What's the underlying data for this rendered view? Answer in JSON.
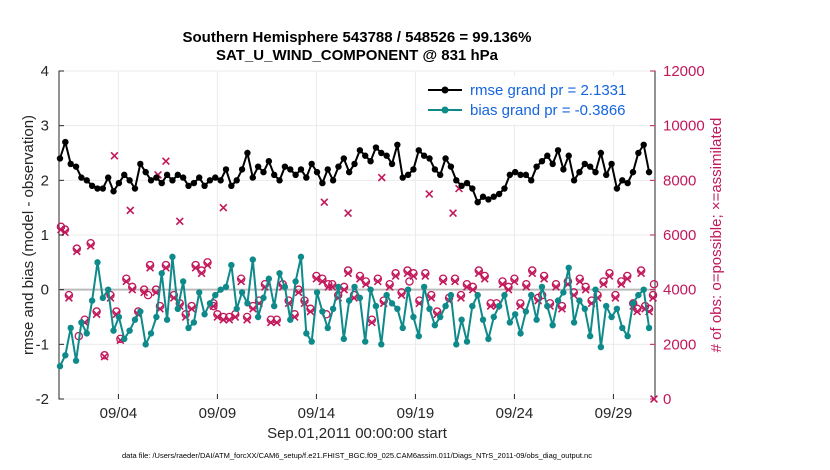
{
  "chart_data": {
    "type": "line",
    "title_line1": "Southern Hemisphere 543788 / 548526 = 99.136%",
    "title_line2": "SAT_U_WIND_COMPONENT @ 831 hPa",
    "xlabel": "Sep.01,2011 00:00:00 start",
    "ylabel": "rmse and bias (model - observation)",
    "ylabel_right": "# of obs: o=possible; ×=assimilated",
    "footnote": "data file: /Users/raeder/DAI/ATM_forcXX/CAM6_setup/f.e21.FHIST_BGC.f09_025.CAM6assim.011/Diags_NTrS_2011-09/obs_diag_output.nc",
    "xlim": [
      1,
      31.1
    ],
    "ylim": [
      -2,
      4
    ],
    "ylim_right": [
      0,
      12000
    ],
    "x_ticks": [
      4,
      9,
      14,
      19,
      24,
      29
    ],
    "x_tick_labels": [
      "09/04",
      "09/09",
      "09/14",
      "09/19",
      "09/24",
      "09/29"
    ],
    "y_ticks": [
      -2,
      -1,
      0,
      1,
      2,
      3,
      4
    ],
    "y_tick_labels": [
      "-2",
      "-1",
      "0",
      "1",
      "2",
      "3",
      "4"
    ],
    "y_right_ticks": [
      0,
      2000,
      4000,
      6000,
      8000,
      10000,
      12000
    ],
    "y_right_tick_labels": [
      "0",
      "2000",
      "4000",
      "6000",
      "8000",
      "10000",
      "12000"
    ],
    "zero_line": 0,
    "legend_position": "top-right",
    "colors": {
      "rmse": "#000000",
      "bias": "#0f8a8a",
      "obs": "#c2185b",
      "legend_text": "#1565e0",
      "zero_line": "#bbbbbb"
    },
    "series": [
      {
        "name": "rmse",
        "legend": "rmse grand pr = 2.1331",
        "values": [
          2.4,
          2.7,
          2.3,
          2.25,
          2.05,
          2.0,
          1.9,
          1.85,
          1.85,
          2.05,
          1.8,
          1.95,
          2.1,
          2.0,
          1.85,
          2.3,
          2.15,
          2.0,
          2.05,
          1.95,
          2.1,
          2.0,
          2.1,
          2.05,
          1.9,
          1.95,
          2.05,
          1.9,
          2.0,
          2.05,
          2.0,
          2.2,
          1.9,
          2.0,
          2.2,
          2.5,
          2.05,
          2.25,
          2.15,
          2.35,
          2.1,
          2.0,
          2.25,
          2.2,
          2.1,
          2.2,
          2.05,
          2.3,
          2.15,
          1.95,
          2.2,
          2.0,
          2.25,
          2.4,
          2.15,
          2.3,
          2.55,
          2.45,
          2.35,
          2.6,
          2.5,
          2.45,
          2.3,
          2.65,
          2.05,
          2.1,
          2.2,
          2.55,
          2.45,
          2.4,
          2.2,
          2.1,
          2.4,
          2.25,
          2.0,
          1.9,
          1.95,
          1.85,
          1.6,
          1.7,
          1.65,
          1.7,
          1.75,
          1.85,
          2.1,
          2.15,
          2.1,
          2.1,
          2.0,
          2.25,
          2.35,
          2.45,
          2.3,
          2.55,
          2.2,
          2.45,
          2.0,
          2.15,
          2.3,
          2.25,
          2.15,
          2.5,
          2.1,
          2.3,
          1.85,
          2.0,
          1.95,
          2.15,
          2.5,
          2.65,
          2.15
        ]
      },
      {
        "name": "bias",
        "legend": "bias grand pr = -0.3866",
        "values": [
          -1.4,
          -1.2,
          -0.7,
          -1.3,
          -0.6,
          -0.8,
          -0.2,
          0.5,
          -0.15,
          0.0,
          -0.75,
          -0.5,
          -0.9,
          -0.75,
          -0.55,
          -0.4,
          -1.0,
          -0.8,
          -0.5,
          0.3,
          -0.55,
          0.6,
          -0.35,
          0.15,
          -0.7,
          -0.6,
          -0.05,
          -0.45,
          -0.25,
          -0.1,
          0.0,
          0.05,
          0.45,
          -0.35,
          -0.05,
          -0.25,
          0.55,
          -0.5,
          -0.15,
          0.2,
          -0.3,
          0.3,
          0.05,
          -0.55,
          0.15,
          0.6,
          -0.8,
          -0.95,
          -0.05,
          -0.4,
          -0.7,
          -0.35,
          0.05,
          -0.9,
          -0.2,
          0.05,
          -0.15,
          -0.95,
          0.0,
          -0.3,
          -1.0,
          -0.1,
          -0.25,
          -0.35,
          -0.7,
          0.0,
          -0.5,
          -0.85,
          0.05,
          -0.35,
          -0.65,
          -0.5,
          -0.3,
          -0.1,
          -1.0,
          -0.55,
          -0.95,
          -0.3,
          -0.1,
          -0.55,
          -0.9,
          -0.5,
          -0.3,
          -0.1,
          -0.6,
          -0.45,
          -0.8,
          -0.4,
          -0.1,
          -0.55,
          0.05,
          -0.3,
          -0.65,
          -0.2,
          -0.05,
          0.4,
          -0.6,
          -0.2,
          -0.35,
          -0.85,
          0.0,
          -1.05,
          -0.3,
          -0.5,
          -0.35,
          -0.7,
          -0.85,
          -0.25,
          -0.1,
          0.0,
          -0.7
        ]
      },
      {
        "name": "obs_possible",
        "values": [
          6300,
          6200,
          3800,
          5500,
          2900,
          5700,
          3200,
          1600,
          3800,
          3200,
          2200,
          4400,
          4100,
          3200,
          4000,
          4900,
          4000,
          3400,
          4900,
          3800,
          3500,
          3100,
          3400,
          4900,
          4700,
          5000,
          3500,
          3100,
          3000,
          3000,
          3100,
          4400,
          3000,
          3400,
          3600,
          4200,
          2900,
          2900,
          4200,
          3600,
          3100,
          4000,
          3600,
          3300,
          4500,
          4400,
          4200,
          4200,
          3800,
          4100,
          4700,
          3800,
          4500,
          4300,
          2900,
          4400,
          3600,
          4200,
          4600,
          3900,
          4700,
          4600,
          3600,
          4600,
          3800,
          3200,
          4400,
          3700,
          4400,
          3800,
          4200,
          4100,
          4700,
          4500,
          3500,
          3500,
          4300,
          4100,
          4400,
          3500,
          4200,
          4700,
          3700,
          4500,
          3500,
          4200,
          3400,
          4300,
          3900,
          4400,
          4100,
          3600,
          3800,
          4300,
          4600,
          3800,
          4300,
          4500,
          3500,
          3300,
          4700,
          3400,
          3300,
          3800,
          2300,
          3800,
          3400,
          3100,
          4300,
          3800,
          4200
        ],
        "x": [
          1.1,
          1.3,
          1.5,
          1.9,
          2.3,
          2.6,
          2.9,
          3.3,
          3.6,
          3.9,
          4.1,
          4.4,
          4.7,
          5.0,
          5.3,
          5.6,
          5.9,
          6.1,
          6.4,
          6.8,
          7.1,
          7.4,
          7.7,
          7.9,
          8.2,
          8.5,
          8.8,
          9.0,
          9.3,
          9.6,
          9.9,
          10.2,
          10.5,
          10.8,
          11.1,
          11.4,
          11.7,
          12.0,
          12.3,
          12.6,
          12.9,
          13.1,
          13.4,
          13.7,
          14.0,
          14.3,
          14.6,
          14.8,
          15.1,
          15.4,
          15.6,
          15.9,
          16.2,
          16.5,
          16.8,
          17.1,
          17.4,
          17.7,
          18.0,
          18.3,
          18.6,
          18.9,
          19.2,
          19.5,
          19.8,
          20.1,
          20.4,
          20.7,
          21.0,
          21.3,
          21.6,
          21.9,
          22.2,
          22.5,
          22.8,
          23.1,
          23.4,
          23.7,
          24.0,
          24.3,
          24.6,
          24.9,
          25.2,
          25.5,
          25.8,
          26.1,
          26.4,
          26.7,
          27.0,
          27.3,
          27.6,
          27.9,
          28.2,
          28.5,
          28.8,
          29.1,
          29.4,
          29.7,
          30.0,
          30.2,
          30.4,
          30.6,
          30.8,
          31.0,
          2.0,
          5.5,
          8.8,
          14.5,
          18.7,
          25.4,
          31.05
        ]
      },
      {
        "name": "obs_assimilated",
        "values": [
          6200,
          6100,
          3700,
          5400,
          2800,
          5600,
          3100,
          1550,
          3700,
          3100,
          2150,
          4300,
          4000,
          3100,
          3900,
          4800,
          3900,
          3300,
          4800,
          3700,
          3400,
          3000,
          3300,
          4800,
          4600,
          4900,
          3400,
          3000,
          2900,
          2900,
          3000,
          4300,
          2900,
          3300,
          3500,
          4100,
          2800,
          2800,
          4100,
          3500,
          3000,
          3900,
          3500,
          3200,
          4400,
          4300,
          4100,
          4100,
          3700,
          4000,
          4600,
          3700,
          4400,
          4200,
          2800,
          4300,
          3500,
          4100,
          4500,
          3800,
          4600,
          4500,
          3500,
          4500,
          3700,
          3100,
          4300,
          3600,
          4300,
          3700,
          4100,
          4000,
          4600,
          4400,
          3400,
          3400,
          4200,
          4000,
          4300,
          3400,
          4100,
          4600,
          3600,
          4400,
          3400,
          4100,
          3300,
          4200,
          3800,
          4300,
          4000,
          3500,
          3700,
          4200,
          4500,
          3700,
          4200,
          4400,
          3400,
          3200,
          4600,
          3300,
          3200,
          3700,
          8900,
          8700,
          6900,
          6500,
          7200,
          6800,
          7000,
          8200,
          7700,
          7500,
          8100,
          6800,
          0
        ],
        "x": [
          1.1,
          1.3,
          1.5,
          1.9,
          2.3,
          2.6,
          2.9,
          3.3,
          3.6,
          3.9,
          4.1,
          4.4,
          4.7,
          5.0,
          5.3,
          5.6,
          5.9,
          6.1,
          6.4,
          6.8,
          7.1,
          7.4,
          7.7,
          7.9,
          8.2,
          8.5,
          8.8,
          9.0,
          9.3,
          9.6,
          9.9,
          10.2,
          10.5,
          10.8,
          11.1,
          11.4,
          11.7,
          12.0,
          12.3,
          12.6,
          12.9,
          13.1,
          13.4,
          13.7,
          14.0,
          14.3,
          14.6,
          14.8,
          15.1,
          15.4,
          15.6,
          15.9,
          16.2,
          16.5,
          16.8,
          17.1,
          17.4,
          17.7,
          18.0,
          18.3,
          18.6,
          18.9,
          19.2,
          19.5,
          19.8,
          20.1,
          20.4,
          20.7,
          21.0,
          21.3,
          21.6,
          21.9,
          22.2,
          22.5,
          22.8,
          23.1,
          23.4,
          23.7,
          24.0,
          24.3,
          24.6,
          24.9,
          25.2,
          25.5,
          25.8,
          26.1,
          26.4,
          26.7,
          27.0,
          27.3,
          27.6,
          27.9,
          28.2,
          28.5,
          28.8,
          29.1,
          29.4,
          29.7,
          30.0,
          30.2,
          30.4,
          30.6,
          30.8,
          31.0,
          3.8,
          6.4,
          4.6,
          7.1,
          14.4,
          15.6,
          9.3,
          6.0,
          21.2,
          19.7,
          17.3,
          20.9,
          31.05
        ]
      }
    ]
  }
}
